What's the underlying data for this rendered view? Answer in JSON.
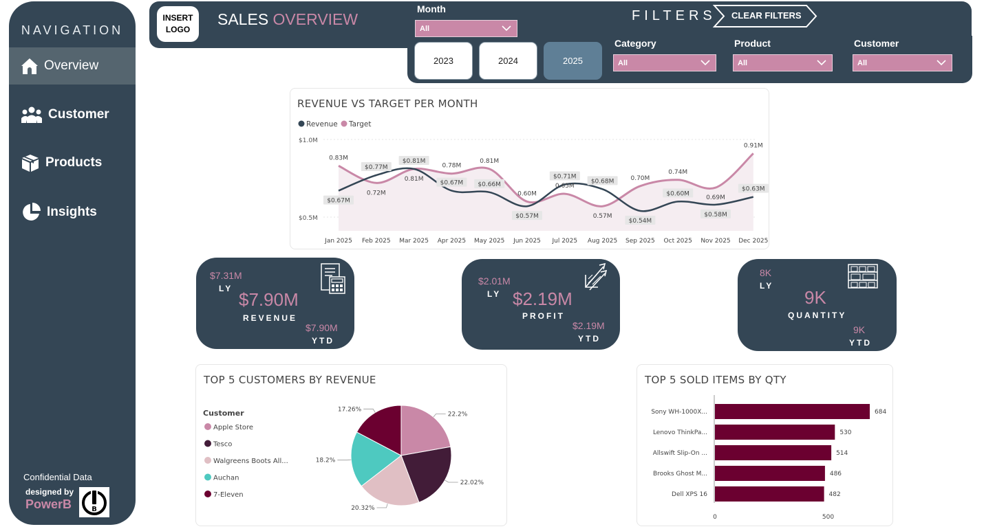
{
  "nav": {
    "title": "NAVIGATION",
    "items": [
      {
        "label": "Overview",
        "icon": "home-icon"
      },
      {
        "label": "Customer",
        "icon": "users-icon"
      },
      {
        "label": "Products",
        "icon": "box-icon"
      },
      {
        "label": "Insights",
        "icon": "pie-icon"
      }
    ],
    "footer": {
      "confidential": "Confidential Data",
      "designed_by": "designed by",
      "brand": "PowerB"
    }
  },
  "header": {
    "logo_line1": "INSERT",
    "logo_line2": "LOGO",
    "title_main": "SALES",
    "title_accent": "OVERVIEW",
    "filters_title": "FILTERS",
    "clear_filters": "CLEAR FILTERS",
    "month_label": "Month",
    "month_value": "All",
    "years": [
      "2023",
      "2024",
      "2025"
    ],
    "selected_year": "2025",
    "category_label": "Category",
    "category_value": "All",
    "product_label": "Product",
    "product_value": "All",
    "customer_label": "Customer",
    "customer_value": "All"
  },
  "colors": {
    "navy": "#344655",
    "pink": "#c988a7",
    "wine": "#6b0030",
    "teal": "#4ec9c0",
    "blush": "#e0bfc4",
    "plum": "#421c38"
  },
  "revenue_chart": {
    "title": "REVENUE VS TARGET PER MONTH",
    "legend": [
      "Revenue",
      "Target"
    ],
    "y_ticks": [
      "$1.0M",
      "$0.5M"
    ]
  },
  "kpis": {
    "revenue": {
      "ly_value": "$7.31M",
      "ly": "LY",
      "value": "$7.90M",
      "label": "REVENUE",
      "ytd_value": "$7.90M",
      "ytd": "YTD"
    },
    "profit": {
      "ly_value": "$2.01M",
      "ly": "LY",
      "value": "$2.19M",
      "label": "PROFIT",
      "ytd_value": "$2.19M",
      "ytd": "YTD"
    },
    "quantity": {
      "ly_value": "8K",
      "ly": "LY",
      "value": "9K",
      "label": "QUANTITY",
      "ytd_value": "9K",
      "ytd": "YTD"
    }
  },
  "customers_chart": {
    "title": "TOP 5 CUSTOMERS BY REVENUE",
    "legend_title": "Customer"
  },
  "items_chart": {
    "title": "TOP 5 SOLD ITEMS BY QTY"
  },
  "chart_data": [
    {
      "type": "line",
      "title": "REVENUE VS TARGET PER MONTH",
      "categories": [
        "Jan 2025",
        "Feb 2025",
        "Mar 2025",
        "Apr 2025",
        "May 2025",
        "Jun 2025",
        "Jul 2025",
        "Aug 2025",
        "Sep 2025",
        "Oct 2025",
        "Nov 2025",
        "Dec 2025"
      ],
      "series": [
        {
          "name": "Revenue",
          "values": [
            0.67,
            0.77,
            0.81,
            0.67,
            0.66,
            0.57,
            0.71,
            0.68,
            0.54,
            0.6,
            0.58,
            0.63
          ],
          "labels": [
            "$0.67M",
            "$0.77M",
            "$0.81M",
            "$0.67M",
            "$0.66M",
            "$0.57M",
            "$0.71M",
            "$0.68M",
            "$0.54M",
            "$0.60M",
            "$0.58M",
            "$0.63M"
          ]
        },
        {
          "name": "Target",
          "values": [
            0.83,
            0.72,
            0.81,
            0.78,
            0.81,
            0.6,
            0.65,
            0.57,
            0.7,
            0.74,
            0.69,
            0.91
          ],
          "labels": [
            "0.83M",
            "0.72M",
            "0.81M",
            "0.78M",
            "0.81M",
            "0.60M",
            "0.65M",
            "0.57M",
            "0.70M",
            "0.74M",
            "0.69M",
            "0.91M"
          ]
        }
      ],
      "ylim": [
        0.45,
        1.0
      ],
      "y_ticks": [
        "$1.0M",
        "$0.5M"
      ],
      "legend": "top-left",
      "grid": true
    },
    {
      "type": "pie",
      "title": "TOP 5 CUSTOMERS BY REVENUE",
      "legend_title": "Customer",
      "categories": [
        "Apple Store",
        "Tesco",
        "Walgreens Boots All...",
        "Auchan",
        "7-Eleven"
      ],
      "values": [
        22.2,
        22.02,
        20.32,
        18.2,
        17.26
      ],
      "labels": [
        "22.2%",
        "22.02%",
        "20.32%",
        "18.2%",
        "17.26%"
      ],
      "colors": [
        "#c988a7",
        "#421c38",
        "#e0bfc4",
        "#4ec9c0",
        "#6b0030"
      ]
    },
    {
      "type": "bar",
      "orientation": "horizontal",
      "title": "TOP 5 SOLD ITEMS BY QTY",
      "categories": [
        "Sony WH-1000X...",
        "Lenovo ThinkPa...",
        "Allswift Slip-On ...",
        "Brooks Ghost M...",
        "Dell XPS 16"
      ],
      "values": [
        684,
        530,
        514,
        486,
        482
      ],
      "x_ticks": [
        "0",
        "500"
      ],
      "xlim": [
        0,
        684
      ]
    }
  ]
}
